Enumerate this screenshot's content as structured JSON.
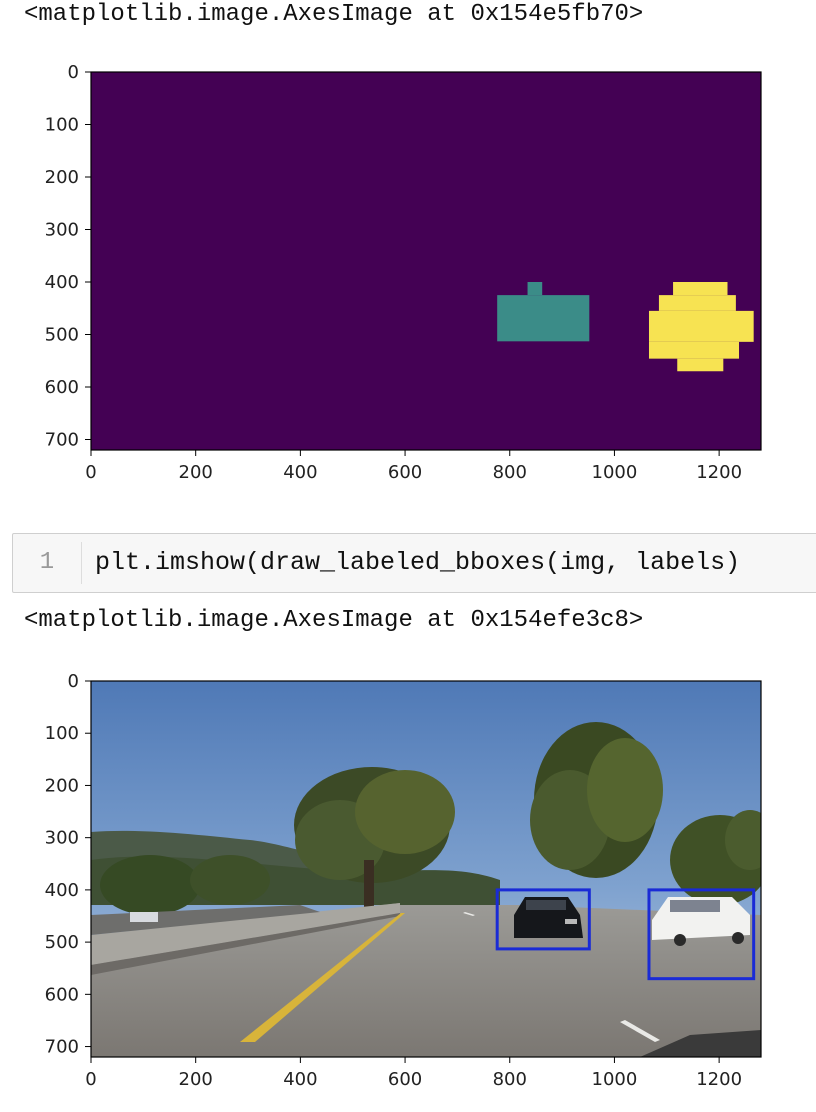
{
  "output1": {
    "text": "<matplotlib.image.AxesImage at 0x154e5fb70>"
  },
  "cell": {
    "prompt": "1",
    "code": "plt.imshow(draw_labeled_bboxes(img, labels)"
  },
  "output2": {
    "text": "<matplotlib.image.AxesImage at 0x154efe3c8>"
  },
  "colors": {
    "background_label": "#440154",
    "label_1": "#3b8c88",
    "label_2": "#f7e352",
    "bbox": "#1a2bd6"
  },
  "chart_data": [
    {
      "type": "heatmap",
      "description_role": "label map",
      "x_ticks": [
        "0",
        "200",
        "400",
        "600",
        "800",
        "1000",
        "1200"
      ],
      "y_ticks": [
        "0",
        "100",
        "200",
        "300",
        "400",
        "500",
        "600",
        "700"
      ],
      "xlim": [
        0,
        1280
      ],
      "ylim": [
        720,
        0
      ],
      "regions": [
        {
          "label": 1,
          "color": "#3b8c88",
          "rects": [
            [
              776,
              425,
              952,
              513
            ],
            [
              834,
              400,
              862,
              425
            ]
          ]
        },
        {
          "label": 2,
          "color": "#f7e352",
          "rects": [
            [
              1112,
              400,
              1216,
              425
            ],
            [
              1085,
              425,
              1232,
              455
            ],
            [
              1066,
              455,
              1266,
              514
            ],
            [
              1066,
              514,
              1238,
              546
            ],
            [
              1120,
              546,
              1208,
              570
            ]
          ]
        }
      ]
    },
    {
      "type": "image",
      "x_ticks": [
        "0",
        "200",
        "400",
        "600",
        "800",
        "1000",
        "1200"
      ],
      "y_ticks": [
        "0",
        "100",
        "200",
        "300",
        "400",
        "500",
        "600",
        "700"
      ],
      "xlim": [
        0,
        1280
      ],
      "ylim": [
        720,
        0
      ],
      "bboxes": [
        {
          "x1": 776,
          "y1": 400,
          "x2": 952,
          "y2": 513
        },
        {
          "x1": 1066,
          "y1": 400,
          "x2": 1266,
          "y2": 570
        }
      ]
    }
  ]
}
